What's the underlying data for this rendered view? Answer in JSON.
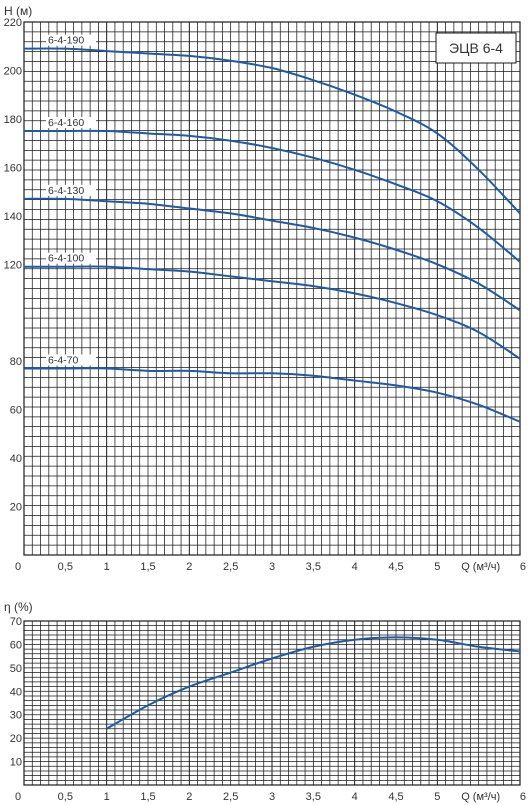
{
  "chart_data": [
    {
      "type": "line",
      "ylabel": "H (м)",
      "xlabel": "Q (м³/ч)",
      "legend_box": "ЭЦВ 6-4",
      "legend_placement": "top-right",
      "xlim": [
        0,
        6
      ],
      "ylim": [
        0,
        220
      ],
      "grid": true,
      "x_ticks": [
        "0",
        "0,5",
        "1",
        "1,5",
        "2",
        "2,5",
        "3",
        "3,5",
        "4",
        "4,5",
        "5",
        "Q (м³/ч)",
        "6"
      ],
      "y_ticks": [
        "20",
        "40",
        "60",
        "80",
        "120",
        "140",
        "160",
        "180",
        "200",
        "220"
      ],
      "series": [
        {
          "name": "6-4-190",
          "x": [
            0,
            0.5,
            1,
            1.5,
            2,
            2.5,
            3,
            3.5,
            4,
            4.5,
            5,
            5.5,
            6
          ],
          "values": [
            209,
            209,
            208,
            207,
            206,
            204,
            201,
            196,
            190,
            183,
            174,
            159,
            141
          ]
        },
        {
          "name": "6-4-160",
          "x": [
            0,
            0.5,
            1,
            1.5,
            2,
            2.5,
            3,
            3.5,
            4,
            4.5,
            5,
            5.5,
            6
          ],
          "values": [
            175,
            175,
            175,
            174,
            173,
            171,
            168,
            164,
            159,
            153,
            146,
            135,
            121
          ]
        },
        {
          "name": "6-4-130",
          "x": [
            0,
            0.5,
            1,
            1.5,
            2,
            2.5,
            3,
            3.5,
            4,
            4.5,
            5,
            5.5,
            6
          ],
          "values": [
            147,
            147,
            146,
            145,
            143,
            141,
            138,
            135,
            131,
            126,
            120,
            112,
            101
          ]
        },
        {
          "name": "6-4-100",
          "x": [
            0,
            0.5,
            1,
            1.5,
            2,
            2.5,
            3,
            3.5,
            4,
            4.5,
            5,
            5.5,
            6
          ],
          "values": [
            119,
            119,
            119,
            118,
            117,
            115,
            113,
            111,
            108,
            104,
            99,
            92,
            81
          ]
        },
        {
          "name": "6-4-70",
          "x": [
            0,
            0.5,
            1,
            1.5,
            2,
            2.5,
            3,
            3.5,
            4,
            4.5,
            5,
            5.5,
            6
          ],
          "values": [
            77,
            77,
            77,
            76,
            76,
            75,
            75,
            74,
            72,
            70,
            67,
            62,
            55
          ]
        }
      ]
    },
    {
      "type": "line",
      "ylabel": "η (%)",
      "xlabel": "Q (м³/ч)",
      "xlim": [
        0,
        6
      ],
      "ylim": [
        0,
        70
      ],
      "grid": true,
      "x_ticks": [
        "0",
        "0,5",
        "1",
        "1,5",
        "2",
        "2,5",
        "3",
        "3,5",
        "4",
        "4,5",
        "5",
        "Q (м³/ч)",
        "6"
      ],
      "y_ticks": [
        "10",
        "20",
        "30",
        "40",
        "50",
        "60",
        "70"
      ],
      "series": [
        {
          "x": [
            1,
            1.5,
            2,
            2.5,
            3,
            3.5,
            4,
            4.5,
            5,
            5.5,
            6
          ],
          "values": [
            24,
            34,
            42,
            48,
            54,
            59,
            62,
            63,
            62,
            59,
            57
          ]
        }
      ]
    }
  ],
  "colors": {
    "curve": "#1f5aa6",
    "grid": "#1a1a1a",
    "text": "#333333"
  }
}
